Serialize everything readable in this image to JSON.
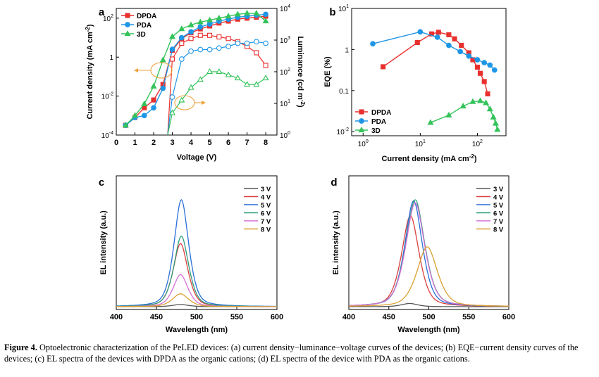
{
  "colors": {
    "dpda": "#e8302f",
    "pda": "#1e96e6",
    "three_d": "#34c35a",
    "orange": "#f0a23c",
    "spec": [
      "#555555",
      "#d94040",
      "#2a6fd6",
      "#2e9e7a",
      "#d670d6",
      "#d9a030"
    ]
  },
  "chart_data": [
    {
      "panel": "a",
      "type": "line",
      "xlabel": "Voltage (V)",
      "ylabel_left": "Current density (mA cm-2)",
      "ylabel_right": "Luminance (cd m-2)",
      "xlim": [
        0,
        8.6
      ],
      "xticks": [
        0,
        1,
        2,
        3,
        4,
        5,
        6,
        7,
        8
      ],
      "ylim_left_log10": [
        -4,
        2.5
      ],
      "ylim_right_log10": [
        0,
        4
      ],
      "yticks_left": [
        {
          "v": -4,
          "b": "10",
          "e": "-4"
        },
        {
          "v": -2,
          "b": "10",
          "e": "-2"
        },
        {
          "v": 0,
          "b": "1",
          "e": ""
        },
        {
          "v": 2,
          "b": "10",
          "e": "2"
        }
      ],
      "yticks_left_fmt": [
        "10^-4",
        "0.01",
        "1",
        "100"
      ],
      "yticks_right": [
        {
          "v": 0,
          "b": "10",
          "e": "0"
        },
        {
          "v": 1,
          "b": "10",
          "e": "1"
        },
        {
          "v": 2,
          "b": "10",
          "e": "2"
        },
        {
          "v": 3,
          "b": "10",
          "e": "3"
        },
        {
          "v": 4,
          "b": "10",
          "e": "4"
        }
      ],
      "legend": [
        "DPDA",
        "PDA",
        "3D"
      ],
      "current_density_log10": [
        {
          "name": "DPDA",
          "x": [
            0.5,
            1,
            1.5,
            2,
            2.5,
            3,
            3.5,
            4,
            4.5,
            5,
            5.5,
            6,
            6.5,
            7,
            7.5,
            8
          ],
          "y": [
            -3.5,
            -3.1,
            -2.6,
            -2.2,
            -1.4,
            0.35,
            0.95,
            1.25,
            1.45,
            1.6,
            1.75,
            1.85,
            1.95,
            2.0,
            2.05,
            2.1
          ]
        },
        {
          "name": "PDA",
          "x": [
            0.5,
            1,
            1.5,
            2,
            2.5,
            3,
            3.5,
            4,
            4.5,
            5,
            5.5,
            6,
            6.5,
            7,
            7.5,
            8
          ],
          "y": [
            -3.5,
            -3.1,
            -3.0,
            -2.6,
            -1.6,
            0.4,
            1.0,
            1.3,
            1.55,
            1.7,
            1.85,
            1.95,
            2.05,
            2.1,
            2.15,
            2.2
          ]
        },
        {
          "name": "3D",
          "x": [
            0.5,
            1,
            1.5,
            2,
            2.5,
            3,
            3.5,
            4,
            4.5,
            5,
            5.5,
            6,
            6.5,
            7,
            7.5,
            8
          ],
          "y": [
            -3.5,
            -3.0,
            -2.4,
            -1.5,
            -0.15,
            1.05,
            1.45,
            1.65,
            1.8,
            1.9,
            2.0,
            2.1,
            2.2,
            2.25,
            2.25,
            1.85
          ]
        }
      ],
      "luminance_log10": [
        {
          "name": "DPDA",
          "x": [
            3,
            3.5,
            4,
            4.5,
            5,
            5.5,
            6,
            6.5,
            7,
            7.5,
            8
          ],
          "y": [
            2.4,
            2.9,
            3.05,
            3.15,
            3.15,
            3.1,
            3.05,
            2.95,
            2.8,
            2.6,
            2.2
          ]
        },
        {
          "name": "PDA",
          "x": [
            3,
            3.5,
            4,
            4.5,
            5,
            5.5,
            6,
            6.5,
            7,
            7.5,
            8
          ],
          "y": [
            1.2,
            2.4,
            2.65,
            2.7,
            2.7,
            2.75,
            2.8,
            2.9,
            2.9,
            2.95,
            2.9
          ]
        },
        {
          "name": "3D",
          "x": [
            3,
            3.5,
            4,
            4.5,
            5,
            5.5,
            6,
            6.5,
            7,
            7.5,
            8
          ],
          "y": [
            0.7,
            1.1,
            1.5,
            1.75,
            2.0,
            2.0,
            1.9,
            1.8,
            1.6,
            1.6,
            1.8
          ]
        }
      ]
    },
    {
      "panel": "b",
      "type": "scatter",
      "xlabel": "Current density (mA cm-2)",
      "ylabel": "EQE (%)",
      "xlim_log10": [
        -0.2,
        2.5
      ],
      "ylim_log10": [
        -2.1,
        1
      ],
      "xticks": [
        {
          "v": 0,
          "b": "10",
          "e": "0"
        },
        {
          "v": 1,
          "b": "10",
          "e": "1"
        },
        {
          "v": 2,
          "b": "10",
          "e": "2"
        }
      ],
      "yticks": [
        {
          "v": -2,
          "b": "10",
          "e": "-2"
        },
        {
          "v": -1,
          "b": "0.1",
          "e": ""
        },
        {
          "v": 0,
          "b": "1",
          "e": ""
        },
        {
          "v": 1,
          "b": "10",
          "e": "1"
        }
      ],
      "legend": [
        "DPDA",
        "PDA",
        "3D"
      ],
      "series_log10": [
        {
          "name": "DPDA",
          "x": [
            0.35,
            0.95,
            1.2,
            1.32,
            1.5,
            1.6,
            1.72,
            1.85,
            1.92,
            2.0,
            2.05,
            2.12,
            2.18
          ],
          "y": [
            -0.42,
            0.17,
            0.38,
            0.42,
            0.36,
            0.26,
            0.1,
            -0.08,
            -0.25,
            -0.43,
            -0.58,
            -0.78,
            -1.08
          ]
        },
        {
          "name": "PDA",
          "x": [
            0.17,
            1.0,
            1.3,
            1.5,
            1.7,
            1.85,
            2.0,
            2.12,
            2.22,
            2.3
          ],
          "y": [
            0.14,
            0.43,
            0.3,
            0.1,
            -0.05,
            -0.16,
            -0.25,
            -0.32,
            -0.38,
            -0.5
          ]
        },
        {
          "name": "3D",
          "x": [
            1.18,
            1.5,
            1.75,
            1.92,
            2.05,
            2.15,
            2.22,
            2.28,
            2.32,
            2.35
          ],
          "y": [
            -1.78,
            -1.6,
            -1.38,
            -1.27,
            -1.25,
            -1.3,
            -1.45,
            -1.65,
            -1.8,
            -1.95
          ]
        }
      ]
    },
    {
      "panel": "c",
      "type": "line",
      "xlabel": "Wavelength (nm)",
      "ylabel": "EL intensity (a.u.)",
      "xlim": [
        400,
        600
      ],
      "xticks": [
        400,
        450,
        500,
        550,
        600
      ],
      "legend": [
        "3 V",
        "4 V",
        "5 V",
        "6 V",
        "7 V",
        "8 V"
      ],
      "peaks": [
        {
          "name": "3 V",
          "center": 480,
          "height": 0.02,
          "width": 11
        },
        {
          "name": "4 V",
          "center": 480,
          "height": 0.59,
          "width": 10
        },
        {
          "name": "5 V",
          "center": 481,
          "height": 1.0,
          "width": 10
        },
        {
          "name": "6 V",
          "center": 481,
          "height": 0.66,
          "width": 10
        },
        {
          "name": "7 V",
          "center": 480,
          "height": 0.3,
          "width": 10
        },
        {
          "name": "8 V",
          "center": 480,
          "height": 0.12,
          "width": 11
        }
      ]
    },
    {
      "panel": "d",
      "type": "line",
      "xlabel": "Wavelength (nm)",
      "ylabel": "EL intensity (a.u.)",
      "xlim": [
        400,
        600
      ],
      "xticks": [
        400,
        450,
        500,
        550,
        600
      ],
      "legend": [
        "3 V",
        "4 V",
        "5 V",
        "6 V",
        "7 V",
        "8 V"
      ],
      "peaks": [
        {
          "name": "3 V",
          "center": 476,
          "height": 0.03,
          "width": 11
        },
        {
          "name": "4 V",
          "center": 477,
          "height": 0.85,
          "width": 12
        },
        {
          "name": "5 V",
          "center": 481,
          "height": 0.99,
          "width": 12
        },
        {
          "name": "6 V",
          "center": 483,
          "height": 1.0,
          "width": 13
        },
        {
          "name": "7 V",
          "center": 483,
          "height": 0.97,
          "width": 13
        },
        {
          "name": "8 V",
          "center": 498,
          "height": 0.56,
          "width": 14
        }
      ]
    }
  ],
  "caption": {
    "label": "Figure 4.",
    "text": " Optoelectronic characterization of the PeLED devices: (a) current density−luminance−voltage curves of the devices; (b) EQE−current density curves of the devices; (c) EL spectra of the devices with DPDA as the organic cations; (d) EL spectra of the device with PDA as the organic cations."
  }
}
